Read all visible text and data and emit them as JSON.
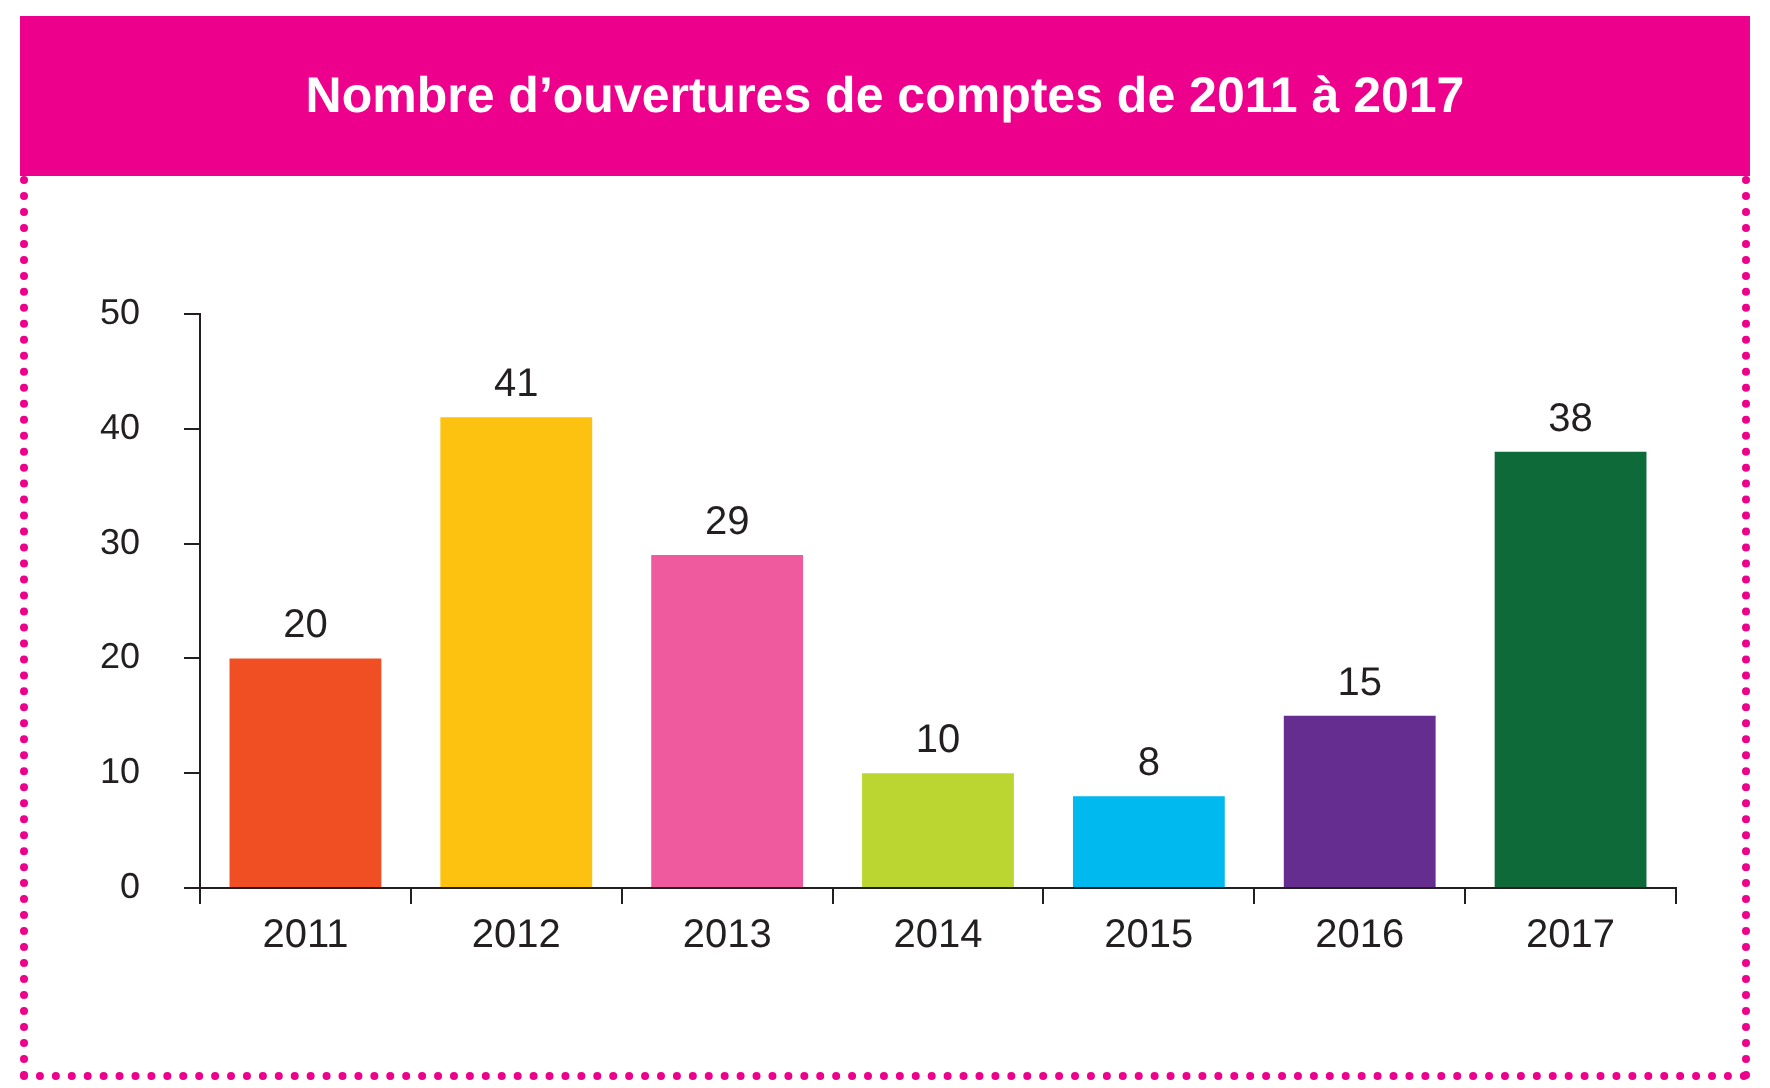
{
  "chart_data": {
    "type": "bar",
    "title": "Nombre d’ouvertures de comptes de 2011 à 2017",
    "categories": [
      "2011",
      "2012",
      "2013",
      "2014",
      "2015",
      "2016",
      "2017"
    ],
    "values": [
      20,
      41,
      29,
      10,
      8,
      15,
      38
    ],
    "colors": [
      "#f04e23",
      "#fdc210",
      "#ef5a9f",
      "#bcd631",
      "#00b9ef",
      "#662d91",
      "#0f6a3a"
    ],
    "ylim": [
      0,
      50
    ],
    "yticks": [
      0,
      10,
      20,
      30,
      40,
      50
    ],
    "data_labels": true,
    "grid": false,
    "legend": false
  }
}
